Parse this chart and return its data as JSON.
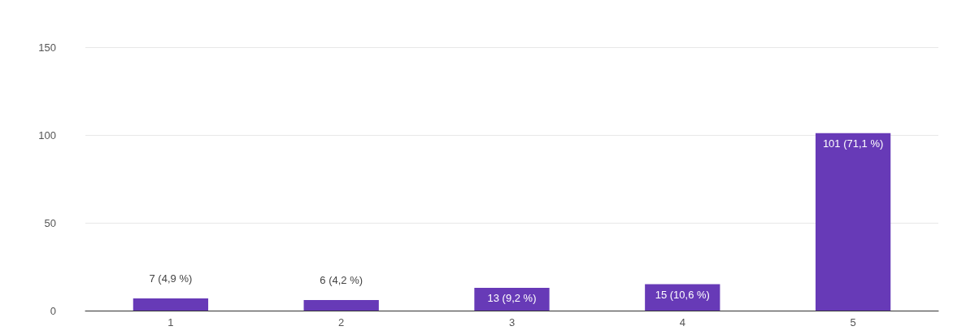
{
  "chart_data": {
    "type": "bar",
    "categories": [
      "1",
      "2",
      "3",
      "4",
      "5"
    ],
    "values": [
      7,
      6,
      13,
      15,
      101
    ],
    "value_labels": [
      "7 (4,9 %)",
      "6 (4,2 %)",
      "13 (9,2 %)",
      "15 (10,6 %)",
      "101 (71,1 %)"
    ],
    "color": "#673ab7",
    "ylim": [
      0,
      150
    ],
    "yticks": [
      0,
      50,
      100,
      150
    ],
    "grid": true
  }
}
